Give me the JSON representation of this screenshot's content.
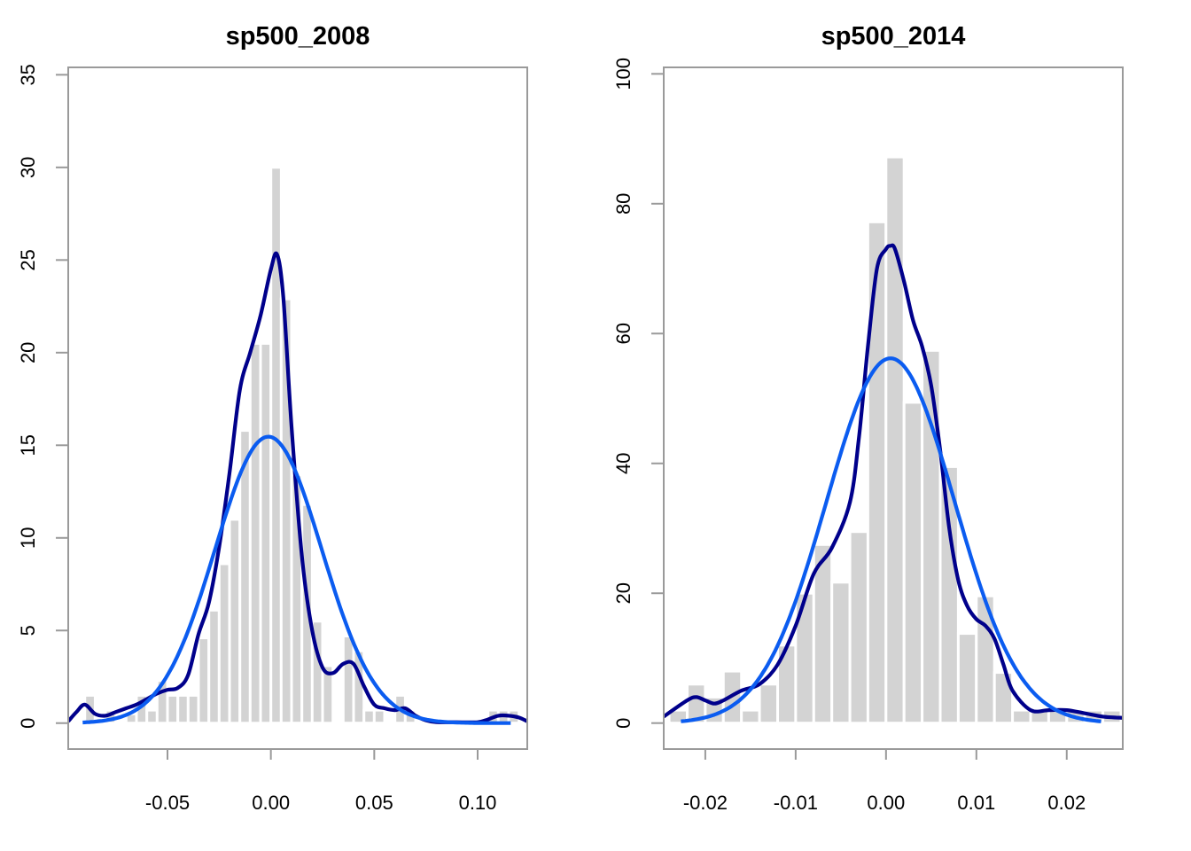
{
  "colors": {
    "bar_fill": "#d3d3d3",
    "density_line": "#00008b",
    "normal_line": "#0b5cf0",
    "axis": "#9a9a9a",
    "background": "#ffffff"
  },
  "chart_data": [
    {
      "type": "histogram",
      "title": "sp500_2008",
      "xlabel": "",
      "ylabel": "",
      "xlim": [
        -0.098,
        0.124
      ],
      "ylim": [
        -1.4,
        35.4
      ],
      "x_ticks": [
        -0.05,
        0.0,
        0.05,
        0.1
      ],
      "x_tick_labels": [
        "-0.05",
        "0.00",
        "0.05",
        "0.10"
      ],
      "y_ticks": [
        0,
        5,
        10,
        15,
        20,
        25,
        30,
        35
      ],
      "y_tick_labels": [
        "0",
        "5",
        "10",
        "15",
        "20",
        "25",
        "30",
        "35"
      ],
      "grid": false,
      "legend": "none",
      "bin_width": 0.005,
      "bins": [
        {
          "x0": -0.09,
          "x1": -0.085,
          "y": 1.5
        },
        {
          "x0": -0.085,
          "x1": -0.08,
          "y": 0.3
        },
        {
          "x0": -0.08,
          "x1": -0.075,
          "y": 0.7
        },
        {
          "x0": -0.07,
          "x1": -0.065,
          "y": 0.5
        },
        {
          "x0": -0.065,
          "x1": -0.06,
          "y": 1.5
        },
        {
          "x0": -0.06,
          "x1": -0.055,
          "y": 0.7
        },
        {
          "x0": -0.055,
          "x1": -0.05,
          "y": 2.3
        },
        {
          "x0": -0.05,
          "x1": -0.045,
          "y": 1.5
        },
        {
          "x0": -0.045,
          "x1": -0.04,
          "y": 1.5
        },
        {
          "x0": -0.04,
          "x1": -0.035,
          "y": 1.5
        },
        {
          "x0": -0.035,
          "x1": -0.03,
          "y": 4.6
        },
        {
          "x0": -0.03,
          "x1": -0.025,
          "y": 6.1
        },
        {
          "x0": -0.025,
          "x1": -0.02,
          "y": 8.6
        },
        {
          "x0": -0.02,
          "x1": -0.015,
          "y": 11.0
        },
        {
          "x0": -0.015,
          "x1": -0.01,
          "y": 15.8
        },
        {
          "x0": -0.01,
          "x1": -0.005,
          "y": 20.5
        },
        {
          "x0": -0.005,
          "x1": 0.0,
          "y": 20.5
        },
        {
          "x0": 0.0,
          "x1": 0.005,
          "y": 30.0
        },
        {
          "x0": 0.005,
          "x1": 0.01,
          "y": 22.9
        },
        {
          "x0": 0.01,
          "x1": 0.015,
          "y": 13.4
        },
        {
          "x0": 0.015,
          "x1": 0.02,
          "y": 11.8
        },
        {
          "x0": 0.02,
          "x1": 0.025,
          "y": 5.5
        },
        {
          "x0": 0.025,
          "x1": 0.03,
          "y": 3.1
        },
        {
          "x0": 0.035,
          "x1": 0.04,
          "y": 4.7
        },
        {
          "x0": 0.04,
          "x1": 0.045,
          "y": 3.9
        },
        {
          "x0": 0.045,
          "x1": 0.05,
          "y": 0.7
        },
        {
          "x0": 0.05,
          "x1": 0.055,
          "y": 0.7
        },
        {
          "x0": 0.06,
          "x1": 0.065,
          "y": 1.5
        },
        {
          "x0": 0.065,
          "x1": 0.07,
          "y": 0.7
        },
        {
          "x0": 0.105,
          "x1": 0.11,
          "y": 0.7
        },
        {
          "x0": 0.11,
          "x1": 0.115,
          "y": 0.7
        },
        {
          "x0": 0.115,
          "x1": 0.12,
          "y": 0.7
        }
      ],
      "series": [
        {
          "kind": "kernel_density",
          "x": [
            -0.098,
            -0.094,
            -0.09,
            -0.085,
            -0.08,
            -0.075,
            -0.07,
            -0.065,
            -0.06,
            -0.055,
            -0.05,
            -0.045,
            -0.04,
            -0.035,
            -0.03,
            -0.025,
            -0.02,
            -0.015,
            -0.01,
            -0.005,
            0.0,
            0.003,
            0.006,
            0.01,
            0.015,
            0.02,
            0.025,
            0.03,
            0.035,
            0.04,
            0.045,
            0.05,
            0.055,
            0.06,
            0.065,
            0.07,
            0.075,
            0.08,
            0.09,
            0.1,
            0.105,
            0.11,
            0.115,
            0.12,
            0.124
          ],
          "y": [
            0.1,
            0.6,
            1.0,
            0.5,
            0.4,
            0.6,
            0.8,
            1.0,
            1.3,
            1.6,
            1.8,
            1.9,
            2.6,
            4.8,
            6.5,
            9.5,
            13.5,
            18.0,
            20.0,
            22.0,
            24.5,
            25.3,
            23.0,
            16.0,
            9.0,
            5.0,
            3.0,
            2.7,
            3.2,
            3.2,
            2.0,
            1.0,
            0.8,
            0.7,
            0.8,
            0.4,
            0.15,
            0.05,
            0.05,
            0.05,
            0.2,
            0.4,
            0.4,
            0.3,
            0.1
          ]
        },
        {
          "kind": "normal_fit",
          "mean": -0.0012,
          "sd": 0.0258,
          "x_range": [
            -0.091,
            0.116
          ]
        }
      ]
    },
    {
      "type": "histogram",
      "title": "sp500_2014",
      "xlabel": "",
      "ylabel": "",
      "xlim": [
        -0.0246,
        0.0262
      ],
      "ylim": [
        -4.0,
        101.0
      ],
      "x_ticks": [
        -0.02,
        -0.01,
        0.0,
        0.01,
        0.02
      ],
      "x_tick_labels": [
        "-0.02",
        "-0.01",
        "0.00",
        "0.01",
        "0.02"
      ],
      "y_ticks": [
        0,
        20,
        40,
        60,
        80,
        100
      ],
      "y_tick_labels": [
        "0",
        "20",
        "40",
        "60",
        "80",
        "100"
      ],
      "grid": false,
      "legend": "none",
      "bin_width": 0.002,
      "bins": [
        {
          "x0": -0.024,
          "x1": -0.022,
          "y": 2
        },
        {
          "x0": -0.022,
          "x1": -0.02,
          "y": 6
        },
        {
          "x0": -0.02,
          "x1": -0.018,
          "y": 4
        },
        {
          "x0": -0.018,
          "x1": -0.016,
          "y": 8
        },
        {
          "x0": -0.016,
          "x1": -0.014,
          "y": 2
        },
        {
          "x0": -0.014,
          "x1": -0.012,
          "y": 6
        },
        {
          "x0": -0.012,
          "x1": -0.01,
          "y": 12
        },
        {
          "x0": -0.01,
          "x1": -0.008,
          "y": 20
        },
        {
          "x0": -0.008,
          "x1": -0.006,
          "y": 27.5
        },
        {
          "x0": -0.006,
          "x1": -0.004,
          "y": 21.7
        },
        {
          "x0": -0.004,
          "x1": -0.002,
          "y": 29.5
        },
        {
          "x0": -0.002,
          "x1": 0.0,
          "y": 77.2
        },
        {
          "x0": 0.0,
          "x1": 0.002,
          "y": 87.2
        },
        {
          "x0": 0.002,
          "x1": 0.004,
          "y": 49.4
        },
        {
          "x0": 0.004,
          "x1": 0.006,
          "y": 57.4
        },
        {
          "x0": 0.006,
          "x1": 0.008,
          "y": 39.5
        },
        {
          "x0": 0.008,
          "x1": 0.01,
          "y": 13.8
        },
        {
          "x0": 0.01,
          "x1": 0.012,
          "y": 19.6
        },
        {
          "x0": 0.012,
          "x1": 0.014,
          "y": 7.8
        },
        {
          "x0": 0.014,
          "x1": 0.016,
          "y": 2
        },
        {
          "x0": 0.016,
          "x1": 0.018,
          "y": 2
        },
        {
          "x0": 0.018,
          "x1": 0.02,
          "y": 2
        },
        {
          "x0": 0.02,
          "x1": 0.022,
          "y": 2
        },
        {
          "x0": 0.022,
          "x1": 0.024,
          "y": 2
        },
        {
          "x0": 0.024,
          "x1": 0.026,
          "y": 2
        }
      ],
      "series": [
        {
          "kind": "kernel_density",
          "x": [
            -0.0246,
            -0.022,
            -0.021,
            -0.02,
            -0.019,
            -0.018,
            -0.016,
            -0.014,
            -0.012,
            -0.01,
            -0.008,
            -0.006,
            -0.004,
            -0.003,
            -0.002,
            -0.001,
            0.0,
            0.0005,
            0.001,
            0.002,
            0.003,
            0.004,
            0.005,
            0.006,
            0.007,
            0.008,
            0.009,
            0.01,
            0.011,
            0.012,
            0.013,
            0.014,
            0.016,
            0.018,
            0.02,
            0.022,
            0.024,
            0.0262
          ],
          "y": [
            1,
            3.5,
            4,
            3.5,
            3,
            3.5,
            5,
            6,
            9,
            15,
            23,
            27,
            34,
            44,
            58,
            70,
            73,
            73.5,
            73,
            68,
            62,
            58,
            52,
            42,
            30,
            22,
            18,
            16,
            15,
            13,
            9,
            5,
            2,
            2,
            2,
            1.5,
            1,
            0.8
          ]
        },
        {
          "kind": "normal_fit",
          "mean": 0.0005,
          "sd": 0.0071,
          "x_range": [
            -0.0227,
            0.0238
          ]
        }
      ]
    }
  ]
}
